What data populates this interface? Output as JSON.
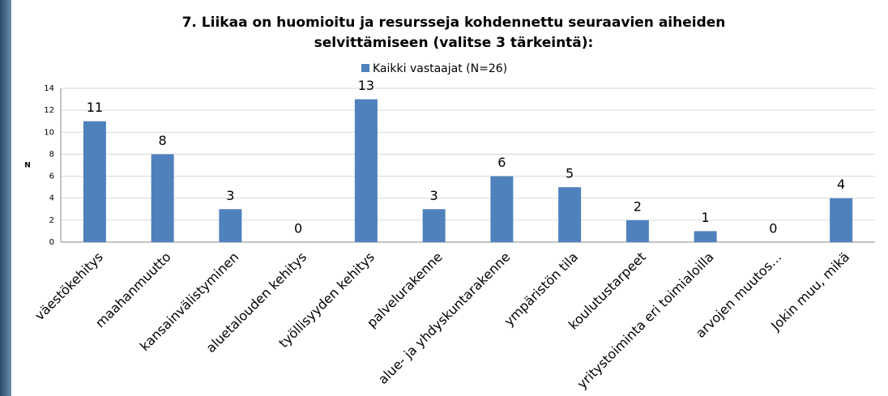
{
  "chart_data": {
    "type": "bar",
    "title": [
      "7. Liikaa on huomioitu ja resursseja kohdennettu seuraavien aiheiden",
      "selvittämiseen (valitse 3 tärkeintä):"
    ],
    "y_label": "N",
    "series": [
      {
        "name": "Kaikki vastaajat (N=26)",
        "color": "#4f81bd",
        "values": [
          11,
          8,
          3,
          0,
          13,
          3,
          6,
          5,
          2,
          1,
          0,
          4
        ]
      }
    ],
    "categories": [
      "väestökehitys",
      "maahanmuutto",
      "kansainvälistyminen",
      "aluetalouden kehitys",
      "työllisyyden kehitys",
      "palvelurakenne",
      "alue- ja yhdyskuntarakenne",
      "ympäristön tila",
      "koulutustarpeet",
      "yritystoiminta eri toimialoilla",
      "arvojen muutos…",
      "Jokin muu, mikä"
    ],
    "ylim": [
      0,
      14
    ],
    "yticks": [
      0,
      2,
      4,
      6,
      8,
      10,
      12,
      14
    ],
    "grid": true
  }
}
